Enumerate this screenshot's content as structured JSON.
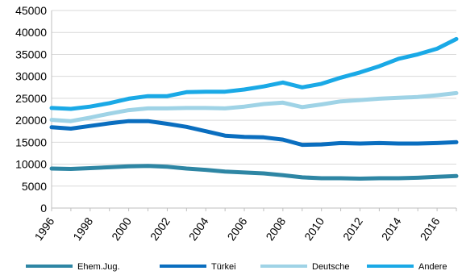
{
  "chart_data": {
    "type": "line",
    "title": "",
    "xlabel": "",
    "ylabel": "",
    "x": [
      1996,
      1997,
      1998,
      1999,
      2000,
      2001,
      2002,
      2003,
      2004,
      2005,
      2006,
      2007,
      2008,
      2009,
      2010,
      2011,
      2012,
      2013,
      2014,
      2015,
      2016,
      2017
    ],
    "x_tick_labels": [
      "1996",
      "1998",
      "2000",
      "2002",
      "2004",
      "2006",
      "2008",
      "2010",
      "2012",
      "2014",
      "2016"
    ],
    "y_tick_labels": [
      "0",
      "5000",
      "10000",
      "15000",
      "20000",
      "25000",
      "30000",
      "35000",
      "40000",
      "45000"
    ],
    "ylim": [
      0,
      45000
    ],
    "xlim": [
      1996,
      2017
    ],
    "grid": "horizontal",
    "legend_position": "bottom",
    "series": [
      {
        "name": "Ehem.Jug.",
        "color": "#2e86a4",
        "values": [
          9000,
          8900,
          9100,
          9300,
          9500,
          9600,
          9400,
          9000,
          8700,
          8300,
          8100,
          7900,
          7500,
          7000,
          6800,
          6800,
          6700,
          6800,
          6800,
          6900,
          7100,
          7300
        ]
      },
      {
        "name": "Türkei",
        "color": "#0a6ebf",
        "values": [
          18400,
          18100,
          18700,
          19300,
          19800,
          19800,
          19200,
          18500,
          17500,
          16500,
          16200,
          16100,
          15600,
          14400,
          14500,
          14800,
          14700,
          14800,
          14700,
          14700,
          14800,
          15000
        ]
      },
      {
        "name": "Deutsche",
        "color": "#9fd3e6",
        "values": [
          20100,
          19800,
          20600,
          21500,
          22300,
          22700,
          22700,
          22800,
          22800,
          22700,
          23100,
          23700,
          24000,
          23000,
          23600,
          24300,
          24600,
          24900,
          25100,
          25300,
          25700,
          26200
        ]
      },
      {
        "name": "Andere",
        "color": "#1aa9e6",
        "values": [
          22800,
          22600,
          23100,
          23900,
          24900,
          25500,
          25500,
          26400,
          26500,
          26500,
          27000,
          27700,
          28600,
          27500,
          28300,
          29700,
          30900,
          32300,
          34000,
          35000,
          36300,
          38500
        ]
      }
    ]
  }
}
